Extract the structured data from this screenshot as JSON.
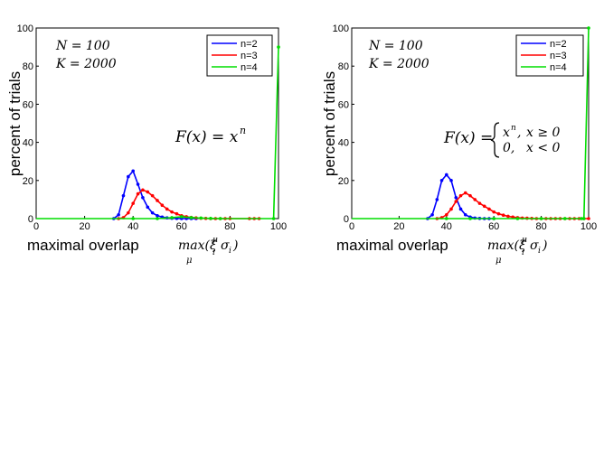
{
  "chart_data": [
    {
      "type": "line",
      "ylabel": "percent of trials",
      "xlabel": "maximal overlap",
      "xlabel_math": "max(ξ_i^μ σ_i) over μ",
      "xlim": [
        0,
        100
      ],
      "ylim": [
        0,
        100
      ],
      "xticks": [
        "0",
        "20",
        "40",
        "60",
        "80",
        "100"
      ],
      "yticks": [
        "0",
        "20",
        "40",
        "60",
        "80",
        "100"
      ],
      "legend_position": "top-right",
      "annotation_params": [
        "N = 100",
        "K = 2000"
      ],
      "annotation_formula": "F(x) = x^n",
      "series": [
        {
          "name": "n=2",
          "color": "#0000ff",
          "x": [
            32,
            34,
            36,
            38,
            40,
            42,
            44,
            46,
            48,
            50,
            52,
            54,
            56,
            58,
            60,
            62,
            64,
            66
          ],
          "y": [
            0,
            2,
            12,
            22,
            25,
            18,
            11,
            6,
            3,
            1.5,
            0.8,
            0.4,
            0.2,
            0.1,
            0,
            0,
            0,
            0
          ]
        },
        {
          "name": "n=3",
          "color": "#ff0000",
          "x": [
            34,
            36,
            38,
            40,
            42,
            44,
            46,
            48,
            50,
            52,
            54,
            56,
            58,
            60,
            62,
            64,
            66,
            68,
            70,
            72,
            74,
            76,
            78,
            80,
            88,
            90,
            92
          ],
          "y": [
            0,
            0.5,
            3,
            8,
            13,
            15,
            14,
            12,
            9.5,
            7,
            5,
            3.5,
            2.5,
            1.5,
            1,
            0.6,
            0.4,
            0.2,
            0.1,
            0,
            0,
            0,
            0,
            0,
            0,
            0,
            0
          ]
        },
        {
          "name": "n=4",
          "color": "#00dd00",
          "x": [
            0,
            40,
            50,
            56,
            60,
            64,
            68,
            72,
            76,
            98,
            100
          ],
          "y": [
            0,
            0,
            0,
            0.5,
            1,
            0.5,
            0.3,
            0.1,
            0,
            0,
            90
          ]
        }
      ]
    },
    {
      "type": "line",
      "ylabel": "percent of trials",
      "xlabel": "maximal overlap",
      "xlabel_math": "max(ξ_i^μ σ_i) over μ",
      "xlim": [
        0,
        100
      ],
      "ylim": [
        0,
        100
      ],
      "xticks": [
        "0",
        "20",
        "40",
        "60",
        "80",
        "100"
      ],
      "yticks": [
        "0",
        "20",
        "40",
        "60",
        "80",
        "100"
      ],
      "legend_position": "top-right",
      "annotation_params": [
        "N = 100",
        "K = 2000"
      ],
      "annotation_formula": "F(x) = { x^n, x ≥ 0 ; 0, x < 0 }",
      "series": [
        {
          "name": "n=2",
          "color": "#0000ff",
          "x": [
            32,
            34,
            36,
            38,
            40,
            42,
            44,
            46,
            48,
            50,
            52,
            54,
            56,
            58,
            60
          ],
          "y": [
            0,
            2,
            10,
            20,
            23,
            20,
            11,
            5,
            2,
            0.8,
            0.3,
            0.1,
            0,
            0,
            0
          ]
        },
        {
          "name": "n=3",
          "color": "#ff0000",
          "x": [
            36,
            38,
            40,
            42,
            44,
            46,
            48,
            50,
            52,
            54,
            56,
            58,
            60,
            62,
            64,
            66,
            68,
            70,
            72,
            74,
            76,
            78,
            80,
            82,
            84,
            86,
            88,
            90,
            92,
            94,
            96,
            98,
            100
          ],
          "y": [
            0,
            0.5,
            2,
            5,
            9,
            12,
            13.5,
            12,
            10,
            8,
            6.5,
            5,
            3.5,
            2.5,
            1.8,
            1.2,
            0.8,
            0.5,
            0.3,
            0.2,
            0.1,
            0,
            0,
            0,
            0,
            0,
            0,
            0,
            0,
            0,
            0,
            0,
            0
          ]
        },
        {
          "name": "n=4",
          "color": "#00dd00",
          "x": [
            0,
            40,
            50,
            60,
            70,
            80,
            90,
            97,
            98,
            100
          ],
          "y": [
            0,
            0,
            0,
            0,
            0,
            0,
            0,
            0,
            0,
            100
          ]
        }
      ]
    }
  ]
}
